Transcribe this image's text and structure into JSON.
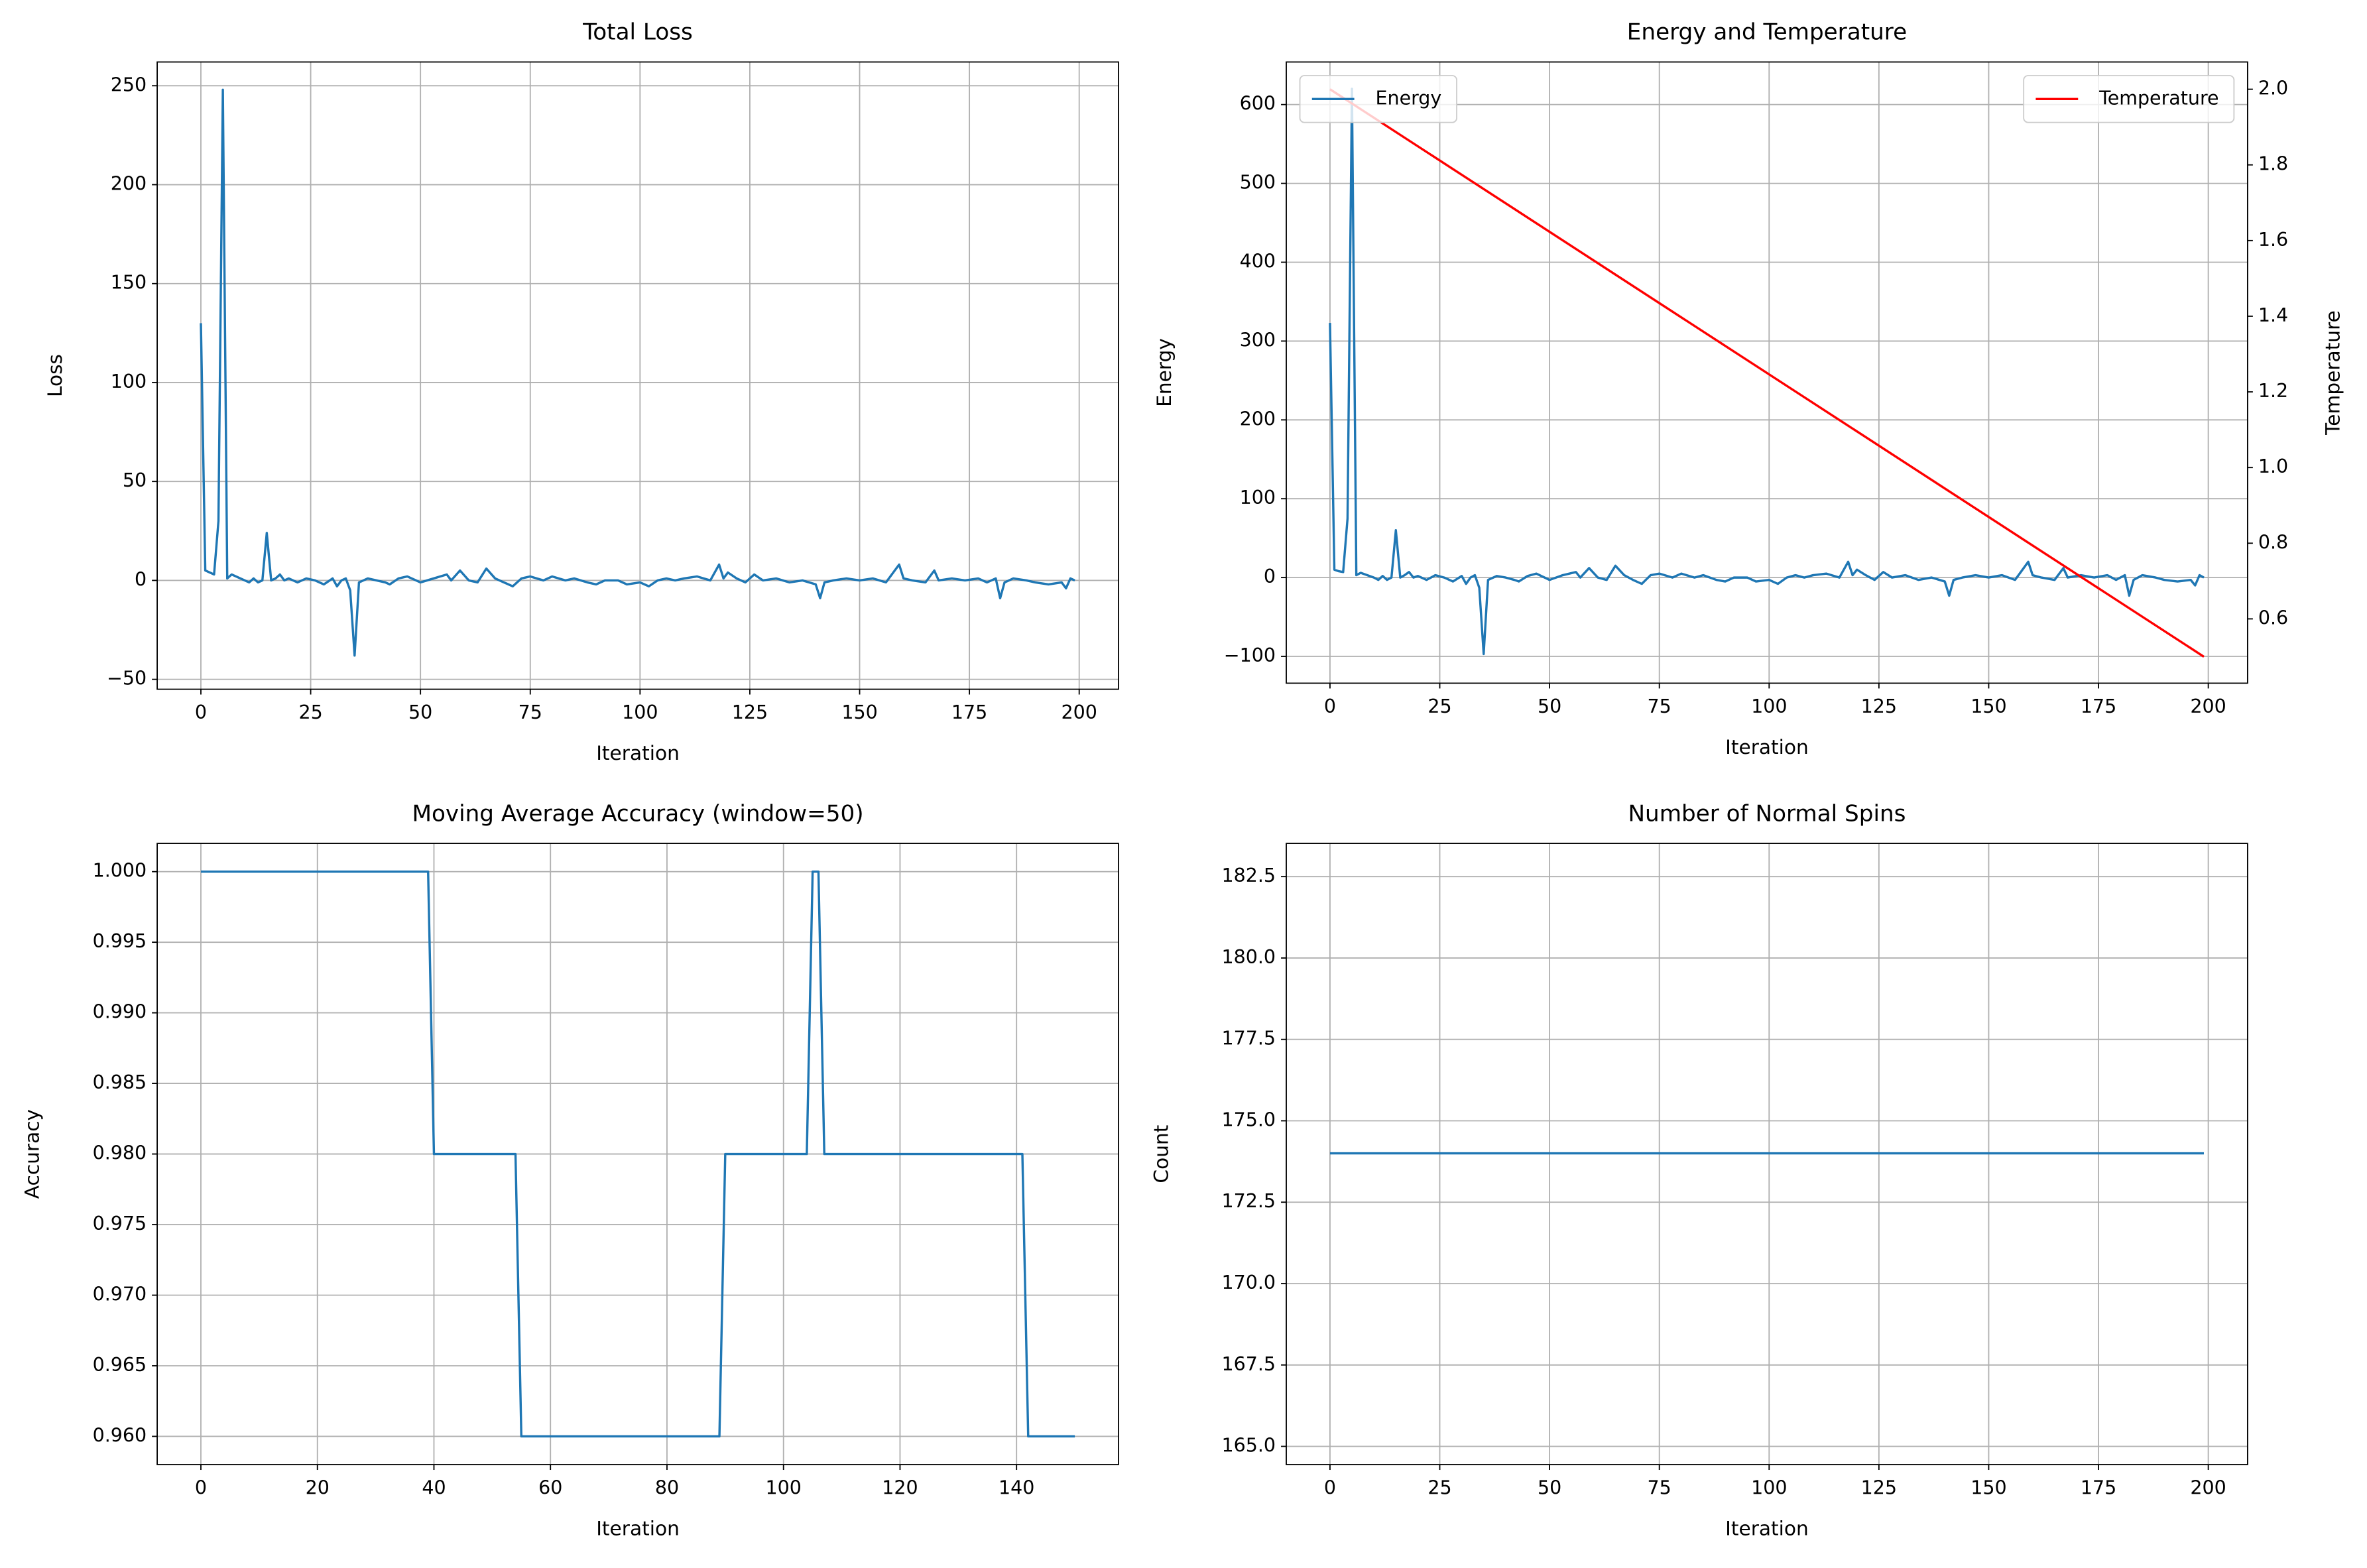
{
  "chart_data": [
    {
      "type": "line",
      "title": "Total Loss",
      "x_label": "Iteration",
      "y_label": "Loss",
      "grid": true,
      "xlim": [
        -9.95,
        208.95
      ],
      "xticks": [
        0,
        25,
        50,
        75,
        100,
        125,
        150,
        175,
        200
      ],
      "ylim": [
        -55,
        262
      ],
      "yticks": [
        {
          "value": -50,
          "label": "−50"
        },
        0,
        50,
        100,
        150,
        200,
        250
      ],
      "series": [
        {
          "color": "#1f77b4",
          "x": [
            0,
            1,
            2,
            3,
            4,
            5,
            6,
            7,
            8,
            9,
            10,
            11,
            12,
            13,
            14,
            15,
            16,
            17,
            18,
            19,
            20,
            22,
            24,
            26,
            28,
            30,
            31,
            32,
            33,
            34,
            35,
            36,
            38,
            40,
            42,
            43,
            45,
            47,
            50,
            53,
            56,
            57,
            59,
            61,
            63,
            65,
            67,
            69,
            71,
            73,
            75,
            78,
            80,
            83,
            85,
            88,
            90,
            92,
            95,
            97,
            100,
            102,
            104,
            106,
            108,
            110,
            113,
            116,
            118,
            119,
            120,
            122,
            124,
            126,
            128,
            131,
            134,
            137,
            140,
            141,
            142,
            144,
            147,
            150,
            153,
            156,
            159,
            160,
            162,
            165,
            167,
            168,
            171,
            174,
            177,
            179,
            181,
            182,
            183,
            185,
            188,
            190,
            193,
            196,
            197,
            198,
            199
          ],
          "values": [
            130,
            5,
            4,
            3,
            30,
            248,
            1,
            3,
            2,
            1,
            0,
            -1,
            1,
            -1,
            0,
            24,
            0,
            1,
            3,
            0,
            1,
            -1,
            1,
            0,
            -2,
            1,
            -3,
            0,
            1,
            -5,
            -38,
            -1,
            1,
            0,
            -1,
            -2,
            1,
            2,
            -1,
            1,
            3,
            0,
            5,
            0,
            -1,
            6,
            1,
            -1,
            -3,
            1,
            2,
            0,
            2,
            0,
            1,
            -1,
            -2,
            0,
            0,
            -2,
            -1,
            -3,
            0,
            1,
            0,
            1,
            2,
            0,
            8,
            1,
            4,
            1,
            -1,
            3,
            0,
            1,
            -1,
            0,
            -2,
            -9,
            -1,
            0,
            1,
            0,
            1,
            -1,
            8,
            1,
            0,
            -1,
            5,
            0,
            1,
            0,
            1,
            -1,
            1,
            -9,
            -1,
            1,
            0,
            -1,
            -2,
            -1,
            -4,
            1,
            0
          ]
        }
      ]
    },
    {
      "type": "line",
      "title": "Energy and Temperature",
      "x_label": "Iteration",
      "y_label": "Energy",
      "y2_label": "Temperature",
      "grid": true,
      "legend_loc": "upper left",
      "legend2_loc": "upper right",
      "xlim": [
        -9.95,
        208.95
      ],
      "xticks": [
        0,
        25,
        50,
        75,
        100,
        125,
        150,
        175,
        200
      ],
      "ylim": [
        -134,
        654
      ],
      "yticks": [
        {
          "value": -100,
          "label": "−100"
        },
        0,
        100,
        200,
        300,
        400,
        500,
        600
      ],
      "y2lim": [
        0.43,
        2.072
      ],
      "y2ticks": [
        0.6,
        0.8,
        {
          "value": 1.0,
          "label": "1.0"
        },
        1.2,
        1.4,
        1.6,
        1.8,
        {
          "value": 2.0,
          "label": "2.0"
        }
      ],
      "series": [
        {
          "name": "Energy",
          "color": "#1f77b4",
          "x": [
            0,
            1,
            2,
            3,
            4,
            5,
            6,
            7,
            8,
            9,
            10,
            11,
            12,
            13,
            14,
            15,
            16,
            17,
            18,
            19,
            20,
            22,
            24,
            26,
            28,
            30,
            31,
            32,
            33,
            34,
            35,
            36,
            38,
            40,
            42,
            43,
            45,
            47,
            50,
            53,
            56,
            57,
            59,
            61,
            63,
            65,
            67,
            69,
            71,
            73,
            75,
            78,
            80,
            83,
            85,
            88,
            90,
            92,
            95,
            97,
            100,
            102,
            104,
            106,
            108,
            110,
            113,
            116,
            118,
            119,
            120,
            122,
            124,
            126,
            128,
            131,
            134,
            137,
            140,
            141,
            142,
            144,
            147,
            150,
            153,
            156,
            159,
            160,
            162,
            165,
            167,
            168,
            171,
            174,
            177,
            179,
            181,
            182,
            183,
            185,
            188,
            190,
            193,
            196,
            197,
            198,
            199
          ],
          "values": [
            323,
            10,
            8,
            7,
            75,
            620,
            3,
            6,
            4,
            2,
            0,
            -3,
            2,
            -3,
            0,
            60,
            0,
            3,
            7,
            0,
            2,
            -3,
            3,
            0,
            -5,
            2,
            -8,
            0,
            3,
            -13,
            -97,
            -3,
            2,
            0,
            -3,
            -5,
            2,
            5,
            -3,
            3,
            7,
            0,
            12,
            0,
            -3,
            15,
            3,
            -3,
            -8,
            3,
            5,
            0,
            5,
            0,
            3,
            -3,
            -5,
            0,
            0,
            -5,
            -3,
            -8,
            0,
            3,
            0,
            3,
            5,
            0,
            20,
            3,
            10,
            3,
            -3,
            7,
            0,
            3,
            -3,
            0,
            -5,
            -23,
            -3,
            0,
            3,
            0,
            3,
            -3,
            20,
            3,
            0,
            -3,
            12,
            0,
            3,
            0,
            3,
            -3,
            3,
            -23,
            -3,
            3,
            0,
            -3,
            -5,
            -3,
            -10,
            3,
            0
          ]
        },
        {
          "name": "Temperature",
          "color": "#ff0000",
          "axis": "y2",
          "x": [
            0,
            199
          ],
          "values": [
            2.0,
            0.5
          ]
        }
      ]
    },
    {
      "type": "line",
      "title": "Moving Average Accuracy (window=50)",
      "x_label": "Iteration",
      "y_label": "Accuracy",
      "grid": true,
      "xlim": [
        -7.5,
        157.5
      ],
      "xticks": [
        0,
        20,
        40,
        60,
        80,
        100,
        120,
        140
      ],
      "ylim": [
        0.958,
        1.002
      ],
      "yticks": [
        {
          "value": 0.96,
          "label": "0.960"
        },
        {
          "value": 0.965,
          "label": "0.965"
        },
        {
          "value": 0.97,
          "label": "0.970"
        },
        {
          "value": 0.975,
          "label": "0.975"
        },
        {
          "value": 0.98,
          "label": "0.980"
        },
        {
          "value": 0.985,
          "label": "0.985"
        },
        {
          "value": 0.99,
          "label": "0.990"
        },
        {
          "value": 0.995,
          "label": "0.995"
        },
        {
          "value": 1.0,
          "label": "1.000"
        }
      ],
      "series": [
        {
          "color": "#1f77b4",
          "x": [
            0,
            39,
            40,
            54,
            55,
            89,
            90,
            104,
            105,
            106,
            107,
            141,
            142,
            150
          ],
          "values": [
            1.0,
            1.0,
            0.98,
            0.98,
            0.96,
            0.96,
            0.98,
            0.98,
            1.0,
            1.0,
            0.98,
            0.98,
            0.96,
            0.96
          ]
        }
      ]
    },
    {
      "type": "line",
      "title": "Number of Normal Spins",
      "x_label": "Iteration",
      "y_label": "Count",
      "grid": true,
      "xlim": [
        -9.95,
        208.95
      ],
      "xticks": [
        0,
        25,
        50,
        75,
        100,
        125,
        150,
        175,
        200
      ],
      "ylim": [
        164.44,
        183.52
      ],
      "yticks": [
        {
          "value": 165,
          "label": "165.0"
        },
        167.5,
        {
          "value": 170,
          "label": "170.0"
        },
        172.5,
        {
          "value": 175,
          "label": "175.0"
        },
        177.5,
        {
          "value": 180,
          "label": "180.0"
        },
        182.5
      ],
      "series": [
        {
          "color": "#1f77b4",
          "x": [
            0,
            199
          ],
          "values": [
            174,
            174
          ]
        }
      ]
    }
  ]
}
